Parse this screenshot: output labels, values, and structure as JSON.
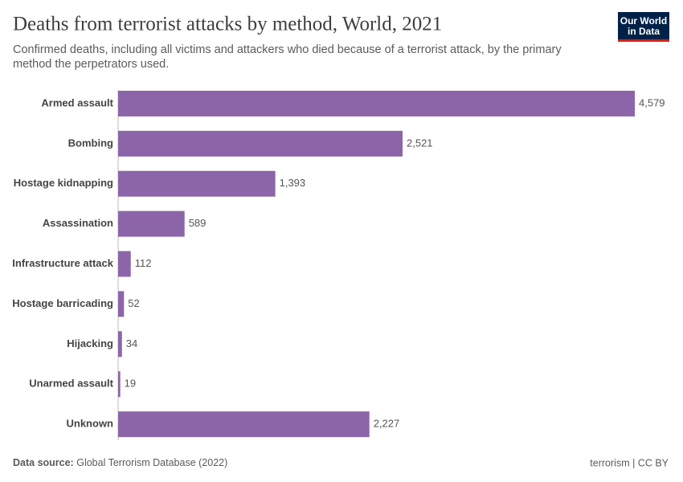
{
  "chart_data": {
    "type": "bar",
    "orientation": "horizontal",
    "title": "Deaths from terrorist attacks by method, World, 2021",
    "subtitle": [
      "Confirmed deaths, including all victims and attackers who died because of a terrorist attack, by the primary",
      "method the perpetrators used."
    ],
    "categories": [
      "Armed assault",
      "Bombing",
      "Hostage kidnapping",
      "Assassination",
      "Infrastructure attack",
      "Hostage barricading",
      "Hijacking",
      "Unarmed assault",
      "Unknown"
    ],
    "values": [
      4579,
      2521,
      1393,
      589,
      112,
      52,
      34,
      19,
      2227
    ],
    "value_labels": [
      "4,579",
      "2,521",
      "1,393",
      "589",
      "112",
      "52",
      "34",
      "19",
      "2,227"
    ],
    "color": "#8c65a8"
  },
  "logo": [
    "Our World",
    "in Data"
  ],
  "footer": {
    "source_label": "Data source:",
    "source": "Global Terrorism Database (2022)",
    "license": "terrorism | CC BY"
  }
}
